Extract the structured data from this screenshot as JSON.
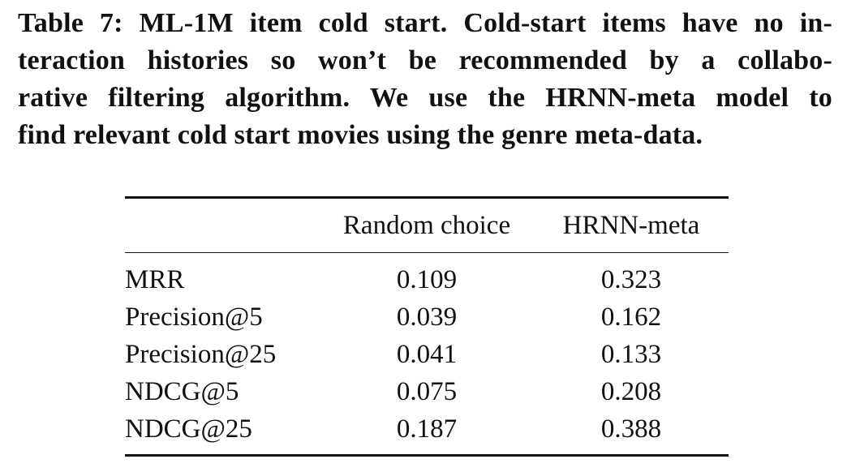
{
  "caption": {
    "lines": [
      "Table 7: ML-1M item cold start. Cold-start items have no in-",
      "teraction histories so won’t be recommended by a collabo-",
      "rative filtering algorithm. We use the HRNN-meta model to",
      "find relevant cold start movies using the genre meta-data."
    ]
  },
  "table": {
    "headers": [
      "",
      "Random choice",
      "HRNN-meta"
    ],
    "rows": [
      {
        "metric": "MRR",
        "random": "0.109",
        "hrnn": "0.323"
      },
      {
        "metric": "Precision@5",
        "random": "0.039",
        "hrnn": "0.162"
      },
      {
        "metric": "Precision@25",
        "random": "0.041",
        "hrnn": "0.133"
      },
      {
        "metric": "NDCG@5",
        "random": "0.075",
        "hrnn": "0.208"
      },
      {
        "metric": "NDCG@25",
        "random": "0.187",
        "hrnn": "0.388"
      }
    ]
  }
}
